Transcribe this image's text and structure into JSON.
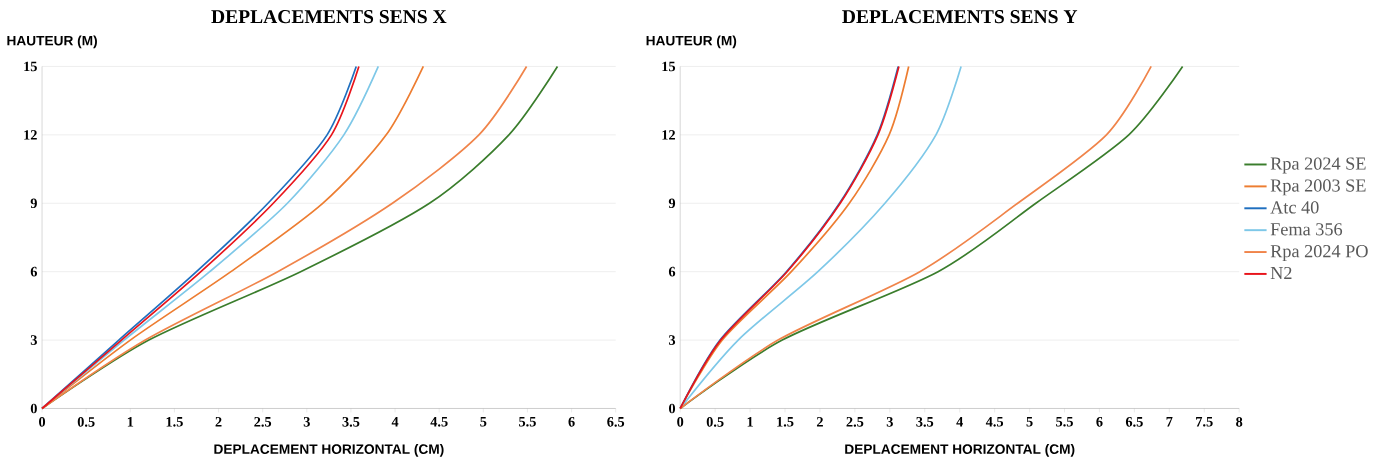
{
  "chart_data": [
    {
      "type": "line",
      "title": "DEPLACEMENTS SENS X",
      "xlabel": "DEPLACEMENT HORIZONTAL (CM)",
      "ylabel": "HAUTEUR (M)",
      "xlim": [
        0,
        6.5
      ],
      "ylim": [
        0,
        15
      ],
      "xticks": [
        0,
        0.5,
        1,
        1.5,
        2,
        2.5,
        3,
        3.5,
        4,
        4.5,
        5,
        5.5,
        6,
        6.5
      ],
      "yticks": [
        0,
        3,
        6,
        9,
        12,
        15
      ],
      "grid": "y",
      "legend": false,
      "series": [
        {
          "color": "#3a7d2c",
          "x": [
            0,
            1.21,
            2.93,
            4.39,
            5.29,
            5.84
          ],
          "values": [
            0,
            3,
            6,
            9,
            12,
            15
          ]
        },
        {
          "color": "#ed7d31",
          "x": [
            0,
            1.0,
            2.14,
            3.18,
            3.9,
            4.32
          ],
          "values": [
            0,
            3,
            6,
            9,
            12,
            15
          ]
        },
        {
          "color": "#1f6fbf",
          "x": [
            0,
            0.87,
            1.75,
            2.56,
            3.23,
            3.56
          ],
          "values": [
            0,
            3,
            6,
            9,
            12,
            15
          ]
        },
        {
          "color": "#7ec8e8",
          "x": [
            0,
            0.93,
            1.9,
            2.78,
            3.42,
            3.81
          ],
          "values": [
            0,
            3,
            6,
            9,
            12,
            15
          ]
        },
        {
          "color": "#f0844a",
          "x": [
            0,
            1.17,
            2.67,
            3.97,
            4.95,
            5.49
          ],
          "values": [
            0,
            3,
            6,
            9,
            12,
            15
          ]
        },
        {
          "color": "#e8141b",
          "x": [
            0,
            0.9,
            1.8,
            2.62,
            3.28,
            3.59
          ],
          "values": [
            0,
            3,
            6,
            9,
            12,
            15
          ]
        }
      ]
    },
    {
      "type": "line",
      "title": "DEPLACEMENTS SENS Y",
      "xlabel": "DEPLACEMENT HORIZONTAL (CM)",
      "ylabel": "HAUTEUR (M)",
      "xlim": [
        0,
        8
      ],
      "ylim": [
        0,
        15
      ],
      "xticks": [
        0,
        0.5,
        1,
        1.5,
        2,
        2.5,
        3,
        3.5,
        4,
        4.5,
        5,
        5.5,
        6,
        6.5,
        7,
        7.5,
        8
      ],
      "yticks": [
        0,
        3,
        6,
        9,
        12,
        15
      ],
      "grid": "y",
      "legend": "right",
      "series": [
        {
          "name": "Rpa 2024 SE",
          "color": "#3a7d2c",
          "x": [
            0,
            1.46,
            3.69,
            5.09,
            6.42,
            7.19
          ],
          "values": [
            0,
            3,
            6,
            9,
            12,
            15
          ]
        },
        {
          "name": "Rpa 2003 SE",
          "color": "#ed7d31",
          "x": [
            0,
            0.6,
            1.59,
            2.42,
            2.99,
            3.27
          ],
          "values": [
            0,
            3,
            6,
            9,
            12,
            15
          ]
        },
        {
          "name": "Atc 40",
          "color": "#1f6fbf",
          "x": [
            0,
            0.57,
            1.52,
            2.28,
            2.82,
            3.12
          ],
          "values": [
            0,
            3,
            6,
            9,
            12,
            15
          ]
        },
        {
          "name": "Fema 356",
          "color": "#7ec8e8",
          "x": [
            0,
            0.83,
            1.97,
            2.93,
            3.66,
            4.02
          ],
          "values": [
            0,
            3,
            6,
            9,
            12,
            15
          ]
        },
        {
          "name": "Rpa 2024 PO",
          "color": "#f0844a",
          "x": [
            0,
            1.4,
            3.43,
            4.83,
            6.1,
            6.74
          ],
          "values": [
            0,
            3,
            6,
            9,
            12,
            15
          ]
        },
        {
          "name": "N2",
          "color": "#e8141b",
          "x": [
            0,
            0.58,
            1.53,
            2.29,
            2.83,
            3.13
          ],
          "values": [
            0,
            3,
            6,
            9,
            12,
            15
          ]
        }
      ]
    }
  ]
}
